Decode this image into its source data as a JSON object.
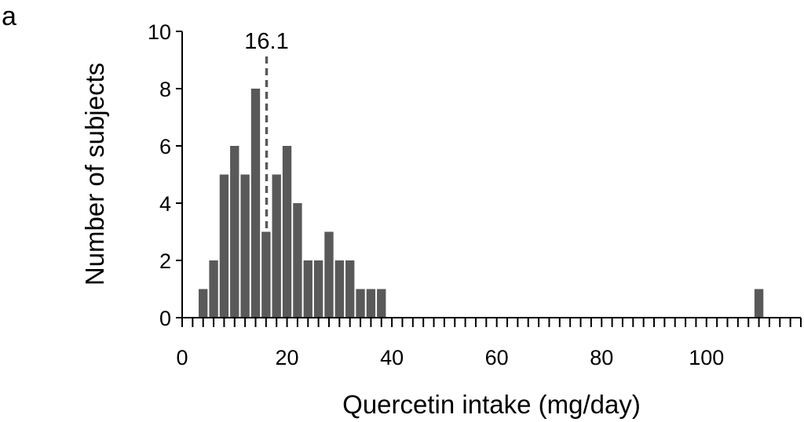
{
  "panel_label": "a",
  "chart_data": {
    "type": "bar",
    "title": "",
    "xlabel": "Quercetin intake (mg/day)",
    "ylabel": "Number of subjects",
    "xlim": [
      0,
      118
    ],
    "ylim": [
      0,
      10
    ],
    "x_ticks": [
      0,
      20,
      40,
      60,
      80,
      100
    ],
    "y_ticks": [
      0,
      2,
      4,
      6,
      8,
      10
    ],
    "bin_width": 2,
    "x": [
      4,
      6,
      8,
      10,
      12,
      14,
      16,
      18,
      20,
      22,
      24,
      26,
      28,
      30,
      32,
      34,
      36,
      38,
      110
    ],
    "values": [
      1,
      2,
      5,
      6,
      5,
      8,
      3,
      5,
      6,
      4,
      2,
      2,
      3,
      2,
      2,
      1,
      1,
      1,
      1
    ],
    "bar_color": "#595959",
    "reference_line": {
      "x": 16.1,
      "label": "16.1",
      "style": "dashed",
      "color": "#595959"
    },
    "grid": false,
    "legend": "none"
  }
}
